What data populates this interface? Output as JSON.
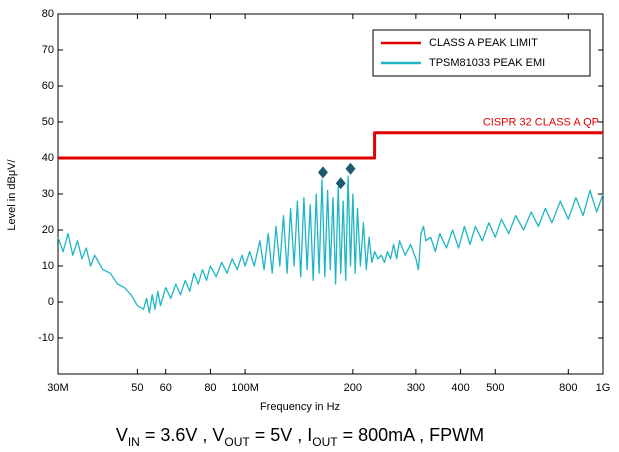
{
  "chart_data": {
    "type": "line",
    "xlabel": "Frequency in Hz",
    "ylabel": "Level in dBμV/",
    "xlog": true,
    "xlim": [
      30000000.0,
      1000000000.0
    ],
    "ylim": [
      -20,
      80
    ],
    "xticks": [
      {
        "value": 30000000.0,
        "label": "30M"
      },
      {
        "value": 50000000.0,
        "label": "50"
      },
      {
        "value": 60000000.0,
        "label": "60"
      },
      {
        "value": 80000000.0,
        "label": "80"
      },
      {
        "value": 100000000.0,
        "label": "100M"
      },
      {
        "value": 200000000.0,
        "label": "200"
      },
      {
        "value": 300000000.0,
        "label": "300"
      },
      {
        "value": 400000000.0,
        "label": "400"
      },
      {
        "value": 500000000.0,
        "label": "500"
      },
      {
        "value": 800000000.0,
        "label": "800"
      },
      {
        "value": 1000000000.0,
        "label": "1G"
      }
    ],
    "yticks": [
      80,
      70,
      60,
      50,
      40,
      30,
      20,
      10,
      0,
      -10
    ],
    "legend": "upper right",
    "annotation": "CISPR 32 CLASS A QP",
    "caption": [
      "V",
      "IN",
      " = 3.6V , V",
      "OUT",
      " = 5V , I",
      "OUT",
      " = 800mA , FPWM"
    ],
    "series": [
      {
        "name": "CLASS A PEAK LIMIT",
        "color": "#e00000",
        "x": [
          30000000.0,
          230000000.0,
          230000000.0,
          1000000000.0
        ],
        "values": [
          40,
          40,
          47,
          47
        ]
      },
      {
        "name": "TPSM81033 PEAK EMI",
        "color": "#1fb5c4",
        "x": [
          30000000.0,
          31000000.0,
          32000000.0,
          33000000.0,
          34000000.0,
          35000000.0,
          36000000.0,
          37000000.0,
          38000000.0,
          40000000.0,
          42000000.0,
          44000000.0,
          46000000.0,
          48000000.0,
          50000000.0,
          52000000.0,
          53000000.0,
          54000000.0,
          55000000.0,
          56000000.0,
          57000000.0,
          58000000.0,
          60000000.0,
          62000000.0,
          64000000.0,
          66000000.0,
          68000000.0,
          70000000.0,
          72000000.0,
          74000000.0,
          76000000.0,
          78000000.0,
          80000000.0,
          83000000.0,
          86000000.0,
          89000000.0,
          92000000.0,
          95000000.0,
          98000000.0,
          100000000.0,
          103000000.0,
          106000000.0,
          110000000.0,
          113000000.0,
          116000000.0,
          119000000.0,
          122000000.0,
          125000000.0,
          128000000.0,
          131000000.0,
          134000000.0,
          137000000.0,
          140000000.0,
          143000000.0,
          146000000.0,
          149000000.0,
          152000000.0,
          155000000.0,
          158000000.0,
          161000000.0,
          164000000.0,
          167000000.0,
          170000000.0,
          173000000.0,
          176000000.0,
          179000000.0,
          182000000.0,
          185000000.0,
          188000000.0,
          191000000.0,
          194000000.0,
          197000000.0,
          200000000.0,
          203000000.0,
          206000000.0,
          210000000.0,
          214000000.0,
          218000000.0,
          222000000.0,
          226000000.0,
          230000000.0,
          235000000.0,
          240000000.0,
          245000000.0,
          250000000.0,
          255000000.0,
          260000000.0,
          265000000.0,
          270000000.0,
          280000000.0,
          290000000.0,
          300000000.0,
          305000000.0,
          310000000.0,
          315000000.0,
          320000000.0,
          330000000.0,
          340000000.0,
          350000000.0,
          365000000.0,
          380000000.0,
          395000000.0,
          410000000.0,
          425000000.0,
          440000000.0,
          460000000.0,
          480000000.0,
          500000000.0,
          520000000.0,
          545000000.0,
          570000000.0,
          600000000.0,
          630000000.0,
          660000000.0,
          690000000.0,
          720000000.0,
          760000000.0,
          800000000.0,
          840000000.0,
          880000000.0,
          920000000.0,
          960000000.0,
          1000000000.0
        ],
        "values": [
          18,
          14,
          19,
          13,
          17,
          12,
          15,
          10,
          13,
          9,
          8,
          5,
          4,
          2,
          -1,
          -2,
          1,
          -3,
          2,
          -2,
          3,
          -1,
          4,
          1,
          5,
          2,
          6,
          3,
          8,
          5,
          9,
          6,
          10,
          7,
          11,
          8,
          12,
          9,
          13,
          10,
          14,
          10,
          17,
          9,
          19,
          8,
          21,
          10,
          24,
          8,
          26,
          10,
          28,
          7,
          29,
          9,
          27,
          6,
          30,
          8,
          34,
          7,
          31,
          9,
          29,
          5,
          32,
          8,
          28,
          6,
          35,
          10,
          30,
          8,
          26,
          10,
          22,
          9,
          18,
          11,
          14,
          12,
          13,
          11,
          14,
          12,
          16,
          12,
          17,
          13,
          16,
          12,
          9,
          19,
          21,
          17,
          18,
          14,
          19,
          15,
          20,
          15,
          21,
          16,
          21,
          17,
          22,
          18,
          23,
          19,
          24,
          20,
          25,
          21,
          26,
          22,
          28,
          23,
          29,
          24,
          31,
          25,
          30
        ]
      },
      {
        "name": "Peaks",
        "color": "#1e5a6e",
        "x": [
          165000000.0,
          185000000.0,
          197000000.0
        ],
        "values": [
          36,
          33,
          37
        ]
      }
    ]
  }
}
